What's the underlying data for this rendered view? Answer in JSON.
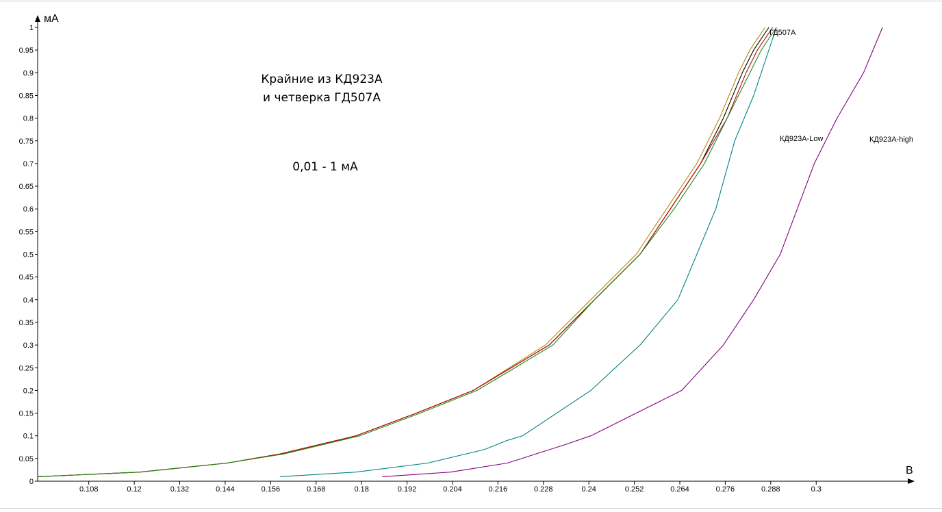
{
  "chart_data": {
    "type": "line",
    "ylabel": "мА",
    "xlabel": "В",
    "xlim": [
      0.0945,
      0.3258
    ],
    "ylim": [
      0,
      1
    ],
    "x_ticks": [
      0.108,
      0.12,
      0.132,
      0.144,
      0.156,
      0.168,
      0.18,
      0.192,
      0.204,
      0.216,
      0.228,
      0.24,
      0.252,
      0.264,
      0.276,
      0.288,
      0.3
    ],
    "x_tick_labels": [
      "0.108",
      "0.12",
      "0.132",
      "0.144",
      "0.156",
      "0.168",
      "0.18",
      "0.192",
      "0.204",
      "0.216",
      "0.228",
      "0.24",
      "0.252",
      "0.264",
      "0.276",
      "0.288",
      "0.3"
    ],
    "y_ticks": [
      0,
      0.05,
      0.1,
      0.15,
      0.2,
      0.25,
      0.3,
      0.35,
      0.4,
      0.45,
      0.5,
      0.55,
      0.6,
      0.65,
      0.7,
      0.75,
      0.8,
      0.85,
      0.9,
      0.95,
      1
    ],
    "y_tick_labels": [
      "0",
      "0.05",
      "0.1",
      "0.15",
      "0.2",
      "0.25",
      "0.3",
      "0.35",
      "0.4",
      "0.45",
      "0.5",
      "0.55",
      "0.6",
      "0.65",
      "0.7",
      "0.75",
      "0.8",
      "0.85",
      "0.9",
      "0.95",
      "1"
    ],
    "grid": false,
    "annotations": [
      "Крайние из КД923А",
      "и четверка ГД507А",
      "0,01 - 1 мА"
    ],
    "series": [
      {
        "name": "ГД507А",
        "color": "#000000",
        "x": [
          0.0945,
          0.1215,
          0.1445,
          0.1585,
          0.1785,
          0.1945,
          0.2095,
          0.2295,
          0.2415,
          0.2535,
          0.2615,
          0.2695,
          0.2755,
          0.2805,
          0.2835,
          0.2875
        ],
        "y": [
          0.01,
          0.02,
          0.04,
          0.06,
          0.1,
          0.15,
          0.2,
          0.3,
          0.4,
          0.5,
          0.6,
          0.7,
          0.8,
          0.9,
          0.95,
          1
        ]
      },
      {
        "name": "",
        "color": "#b8860b",
        "x": [
          0.0945,
          0.1215,
          0.1445,
          0.1585,
          0.1785,
          0.1945,
          0.2095,
          0.2285,
          0.2405,
          0.2525,
          0.2605,
          0.2685,
          0.2745,
          0.2795,
          0.2825,
          0.2865
        ],
        "y": [
          0.01,
          0.02,
          0.04,
          0.06,
          0.1,
          0.15,
          0.2,
          0.3,
          0.4,
          0.5,
          0.6,
          0.7,
          0.8,
          0.9,
          0.95,
          1
        ]
      },
      {
        "name": "",
        "color": "#c00000",
        "x": [
          0.0945,
          0.1215,
          0.1445,
          0.1585,
          0.1785,
          0.1945,
          0.2095,
          0.2295,
          0.2415,
          0.2535,
          0.2615,
          0.2695,
          0.2765,
          0.2815,
          0.2845,
          0.2885
        ],
        "y": [
          0.01,
          0.02,
          0.04,
          0.06,
          0.1,
          0.15,
          0.2,
          0.3,
          0.4,
          0.5,
          0.6,
          0.7,
          0.8,
          0.9,
          0.95,
          1
        ]
      },
      {
        "name": "",
        "color": "#1a8a1a",
        "x": [
          0.0945,
          0.1215,
          0.1445,
          0.1595,
          0.1795,
          0.1955,
          0.2105,
          0.2305,
          0.2415,
          0.2535,
          0.2625,
          0.2705,
          0.2765,
          0.2825,
          0.2855,
          0.2895
        ],
        "y": [
          0.01,
          0.02,
          0.04,
          0.06,
          0.1,
          0.15,
          0.2,
          0.3,
          0.4,
          0.5,
          0.6,
          0.7,
          0.8,
          0.9,
          0.95,
          1
        ]
      },
      {
        "name": "КД923A-Low",
        "color": "#008080",
        "x": [
          0.1585,
          0.1785,
          0.1975,
          0.2125,
          0.2185,
          0.2225,
          0.2405,
          0.2535,
          0.2635,
          0.2735,
          0.2785,
          0.2835,
          0.2895
        ],
        "y": [
          0.01,
          0.02,
          0.04,
          0.07,
          0.09,
          0.1,
          0.2,
          0.3,
          0.4,
          0.6,
          0.75,
          0.85,
          1
        ]
      },
      {
        "name": "КД923A-high",
        "color": "#800080",
        "x": [
          0.1855,
          0.2035,
          0.2185,
          0.2335,
          0.2405,
          0.2525,
          0.2645,
          0.2755,
          0.2835,
          0.2905,
          0.2995,
          0.3055,
          0.3125,
          0.3175
        ],
        "y": [
          0.01,
          0.02,
          0.04,
          0.08,
          0.1,
          0.15,
          0.2,
          0.3,
          0.4,
          0.5,
          0.7,
          0.8,
          0.9,
          1
        ]
      }
    ]
  }
}
